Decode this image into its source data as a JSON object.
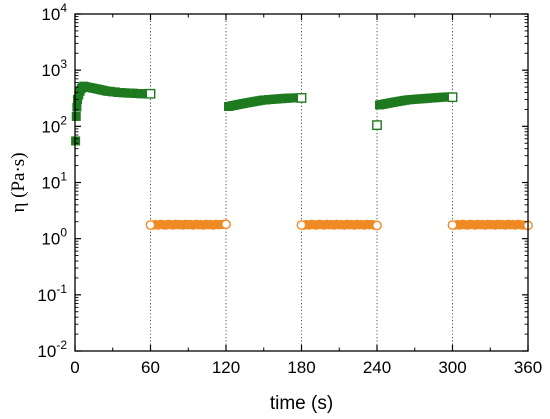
{
  "chart_data": {
    "type": "scatter",
    "title": "",
    "xlabel": "time (s)",
    "ylabel": "η (Pa·s)",
    "xlim": [
      0,
      360
    ],
    "ylim": [
      0.01,
      10000
    ],
    "yscale": "log",
    "x_ticks": [
      0,
      60,
      120,
      180,
      240,
      300,
      360
    ],
    "y_ticks": [
      {
        "value": 0.01,
        "base": "10",
        "exp": "-2"
      },
      {
        "value": 0.1,
        "base": "10",
        "exp": "-1"
      },
      {
        "value": 1,
        "base": "10",
        "exp": "0"
      },
      {
        "value": 10,
        "base": "10",
        "exp": "1"
      },
      {
        "value": 100,
        "base": "10",
        "exp": "2"
      },
      {
        "value": 1000,
        "base": "10",
        "exp": "3"
      },
      {
        "value": 10000,
        "base": "10",
        "exp": "4"
      }
    ],
    "interval_lines_x": [
      60,
      120,
      180,
      240,
      300
    ],
    "grid": false,
    "legend": "none",
    "series": [
      {
        "marker": "square",
        "color": "#1f7a1f",
        "segments": [
          {
            "x": [
              0.5,
              1,
              1.5,
              2,
              3,
              4,
              5,
              6,
              7,
              8,
              10,
              12,
              14,
              16,
              18,
              20,
              22,
              24,
              26,
              28,
              30,
              32,
              34,
              36,
              38,
              40,
              42,
              44,
              46,
              48,
              50,
              52,
              54,
              56,
              58
            ],
            "y": [
              55,
              150,
              220,
              300,
              360,
              420,
              470,
              500,
              520,
              510,
              500,
              490,
              480,
              470,
              460,
              450,
              440,
              430,
              420,
              420,
              410,
              410,
              400,
              400,
              395,
              395,
              390,
              390,
              390,
              385,
              385,
              380,
              380,
              380,
              380
            ]
          },
          {
            "x": [
              122,
              124,
              126,
              128,
              130,
              132,
              134,
              136,
              138,
              140,
              142,
              144,
              146,
              148,
              150,
              152,
              154,
              156,
              158,
              160,
              162,
              164,
              166,
              168,
              170,
              172,
              174,
              176
            ],
            "y": [
              225,
              230,
              235,
              240,
              245,
              250,
              255,
              260,
              265,
              270,
              275,
              280,
              285,
              290,
              295,
              295,
              300,
              300,
              305,
              305,
              310,
              310,
              315,
              315,
              318,
              320,
              320,
              322
            ]
          },
          {
            "x": [
              242,
              244,
              246,
              248,
              250,
              252,
              254,
              256,
              258,
              260,
              262,
              264,
              266,
              268,
              270,
              272,
              274,
              276,
              278,
              280,
              282,
              284,
              286,
              288,
              290,
              292,
              294,
              296
            ],
            "y": [
              240,
              245,
              250,
              255,
              260,
              265,
              270,
              275,
              280,
              285,
              290,
              295,
              298,
              300,
              303,
              305,
              308,
              310,
              312,
              315,
              318,
              320,
              322,
              325,
              328,
              330,
              332,
              335
            ]
          }
        ],
        "open_points": [
          {
            "x": 60,
            "y": 380
          },
          {
            "x": 180,
            "y": 320
          },
          {
            "x": 240,
            "y": 105
          },
          {
            "x": 300,
            "y": 330
          }
        ]
      },
      {
        "marker": "circle",
        "color": "#f08a24",
        "segments": [
          {
            "x": [
              62,
              64,
              66,
              68,
              70,
              72,
              74,
              76,
              78,
              80,
              82,
              84,
              86,
              88,
              90,
              92,
              94,
              96,
              98,
              100,
              102,
              104,
              106,
              108,
              110,
              112,
              114,
              116,
              118
            ],
            "y": [
              1.75,
              1.78,
              1.75,
              1.8,
              1.77,
              1.75,
              1.8,
              1.78,
              1.75,
              1.8,
              1.77,
              1.78,
              1.75,
              1.8,
              1.77,
              1.78,
              1.75,
              1.8,
              1.77,
              1.78,
              1.75,
              1.8,
              1.77,
              1.78,
              1.75,
              1.8,
              1.77,
              1.78,
              1.8
            ]
          },
          {
            "x": [
              182,
              184,
              186,
              188,
              190,
              192,
              194,
              196,
              198,
              200,
              202,
              204,
              206,
              208,
              210,
              212,
              214,
              216,
              218,
              220,
              222,
              224,
              226,
              228,
              230,
              232,
              234,
              236,
              238
            ],
            "y": [
              1.75,
              1.78,
              1.75,
              1.8,
              1.77,
              1.75,
              1.8,
              1.78,
              1.75,
              1.8,
              1.77,
              1.78,
              1.75,
              1.8,
              1.77,
              1.78,
              1.75,
              1.8,
              1.77,
              1.78,
              1.75,
              1.8,
              1.77,
              1.78,
              1.75,
              1.8,
              1.77,
              1.78,
              1.75
            ]
          },
          {
            "x": [
              302,
              304,
              306,
              308,
              310,
              312,
              314,
              316,
              318,
              320,
              322,
              324,
              326,
              328,
              330,
              332,
              334,
              336,
              338,
              340,
              342,
              344,
              346,
              348,
              350,
              352,
              354,
              356
            ],
            "y": [
              1.75,
              1.78,
              1.75,
              1.8,
              1.77,
              1.75,
              1.8,
              1.78,
              1.75,
              1.8,
              1.77,
              1.78,
              1.75,
              1.8,
              1.77,
              1.78,
              1.75,
              1.8,
              1.77,
              1.78,
              1.75,
              1.8,
              1.77,
              1.78,
              1.75,
              1.8,
              1.77,
              1.75
            ]
          }
        ],
        "open_points": [
          {
            "x": 60,
            "y": 1.75
          },
          {
            "x": 120,
            "y": 1.8
          },
          {
            "x": 180,
            "y": 1.75
          },
          {
            "x": 240,
            "y": 1.72
          },
          {
            "x": 300,
            "y": 1.75
          },
          {
            "x": 360,
            "y": 1.72
          }
        ]
      }
    ]
  }
}
